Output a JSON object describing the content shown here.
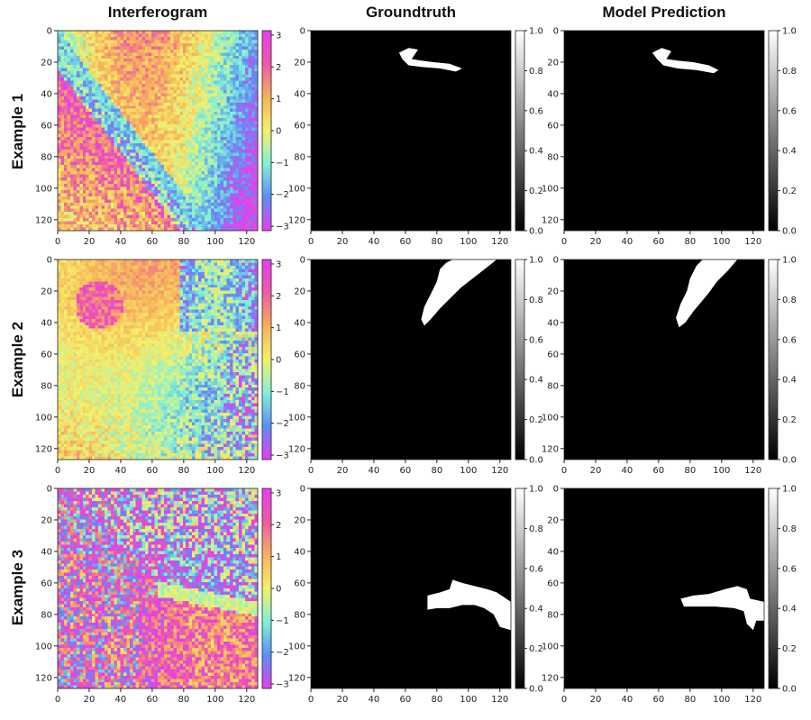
{
  "column_titles": [
    "Interferogram",
    "Groundtruth",
    "Model Prediction"
  ],
  "row_titles": [
    "Example 1",
    "Example 2",
    "Example 3"
  ],
  "chart_data": [
    {
      "type": "heatmap",
      "panel": "interferogram",
      "x_ticks": [
        "0",
        "20",
        "40",
        "60",
        "80",
        "100",
        "120"
      ],
      "y_ticks": [
        "0",
        "20",
        "40",
        "60",
        "80",
        "100",
        "120"
      ],
      "xlim": [
        0,
        127
      ],
      "ylim": [
        127,
        0
      ],
      "colorbar": {
        "ticks": [
          "3",
          "2",
          "1",
          "0",
          "−1",
          "−2",
          "−3"
        ],
        "range": [
          -3.14,
          3.14
        ],
        "colormap": "hsv-like",
        "colors": [
          "#e83cf0",
          "#5b8ff5",
          "#7ff0d8",
          "#f5f06a",
          "#f7b25a",
          "#ee5aa6",
          "#e83cf0"
        ]
      }
    },
    {
      "type": "heatmap",
      "panel": "mask",
      "x_ticks": [
        "0",
        "20",
        "40",
        "60",
        "80",
        "100",
        "120"
      ],
      "y_ticks": [
        "0",
        "20",
        "40",
        "60",
        "80",
        "100",
        "120"
      ],
      "xlim": [
        0,
        127
      ],
      "ylim": [
        127,
        0
      ],
      "colorbar": {
        "ticks": [
          "1.0",
          "0.8",
          "0.6",
          "0.4",
          "0.2",
          "0.0"
        ],
        "range": [
          0,
          1
        ],
        "colormap": "gray"
      }
    }
  ],
  "masks": {
    "ex1_gt": [
      [
        56,
        14
      ],
      [
        62,
        11
      ],
      [
        68,
        12
      ],
      [
        64,
        18
      ],
      [
        70,
        19
      ],
      [
        78,
        20
      ],
      [
        88,
        21
      ],
      [
        96,
        24
      ],
      [
        92,
        26
      ],
      [
        82,
        24
      ],
      [
        70,
        23
      ],
      [
        62,
        22
      ],
      [
        58,
        18
      ]
    ],
    "ex1_pred": [
      [
        56,
        14
      ],
      [
        62,
        11
      ],
      [
        68,
        13
      ],
      [
        65,
        18
      ],
      [
        72,
        19
      ],
      [
        82,
        20
      ],
      [
        92,
        22
      ],
      [
        98,
        25
      ],
      [
        95,
        27
      ],
      [
        84,
        25
      ],
      [
        72,
        24
      ],
      [
        63,
        22
      ],
      [
        59,
        18
      ]
    ],
    "ex2_gt": [
      [
        118,
        0
      ],
      [
        113,
        4
      ],
      [
        104,
        11
      ],
      [
        95,
        18
      ],
      [
        88,
        25
      ],
      [
        82,
        31
      ],
      [
        76,
        38
      ],
      [
        72,
        42
      ],
      [
        70,
        38
      ],
      [
        72,
        30
      ],
      [
        76,
        22
      ],
      [
        80,
        14
      ],
      [
        82,
        6
      ],
      [
        86,
        2
      ],
      [
        90,
        0
      ]
    ],
    "ex2_pred": [
      [
        110,
        0
      ],
      [
        104,
        7
      ],
      [
        97,
        14
      ],
      [
        92,
        21
      ],
      [
        87,
        27
      ],
      [
        82,
        33
      ],
      [
        77,
        40
      ],
      [
        73,
        43
      ],
      [
        71,
        37
      ],
      [
        74,
        28
      ],
      [
        78,
        20
      ],
      [
        80,
        12
      ],
      [
        84,
        4
      ],
      [
        88,
        0
      ]
    ],
    "ex3_gt": [
      [
        74,
        68
      ],
      [
        82,
        66
      ],
      [
        88,
        64
      ],
      [
        90,
        58
      ],
      [
        96,
        60
      ],
      [
        104,
        62
      ],
      [
        112,
        64
      ],
      [
        118,
        66
      ],
      [
        127,
        72
      ],
      [
        127,
        90
      ],
      [
        120,
        88
      ],
      [
        116,
        80
      ],
      [
        110,
        76
      ],
      [
        104,
        74
      ],
      [
        96,
        74
      ],
      [
        88,
        76
      ],
      [
        80,
        76
      ],
      [
        74,
        77
      ]
    ],
    "ex3_pred": [
      [
        74,
        70
      ],
      [
        82,
        68
      ],
      [
        92,
        67
      ],
      [
        102,
        64
      ],
      [
        110,
        62
      ],
      [
        116,
        64
      ],
      [
        118,
        70
      ],
      [
        127,
        72
      ],
      [
        127,
        84
      ],
      [
        122,
        84
      ],
      [
        120,
        90
      ],
      [
        116,
        86
      ],
      [
        114,
        78
      ],
      [
        108,
        76
      ],
      [
        96,
        75
      ],
      [
        84,
        75
      ],
      [
        76,
        75
      ]
    ]
  }
}
